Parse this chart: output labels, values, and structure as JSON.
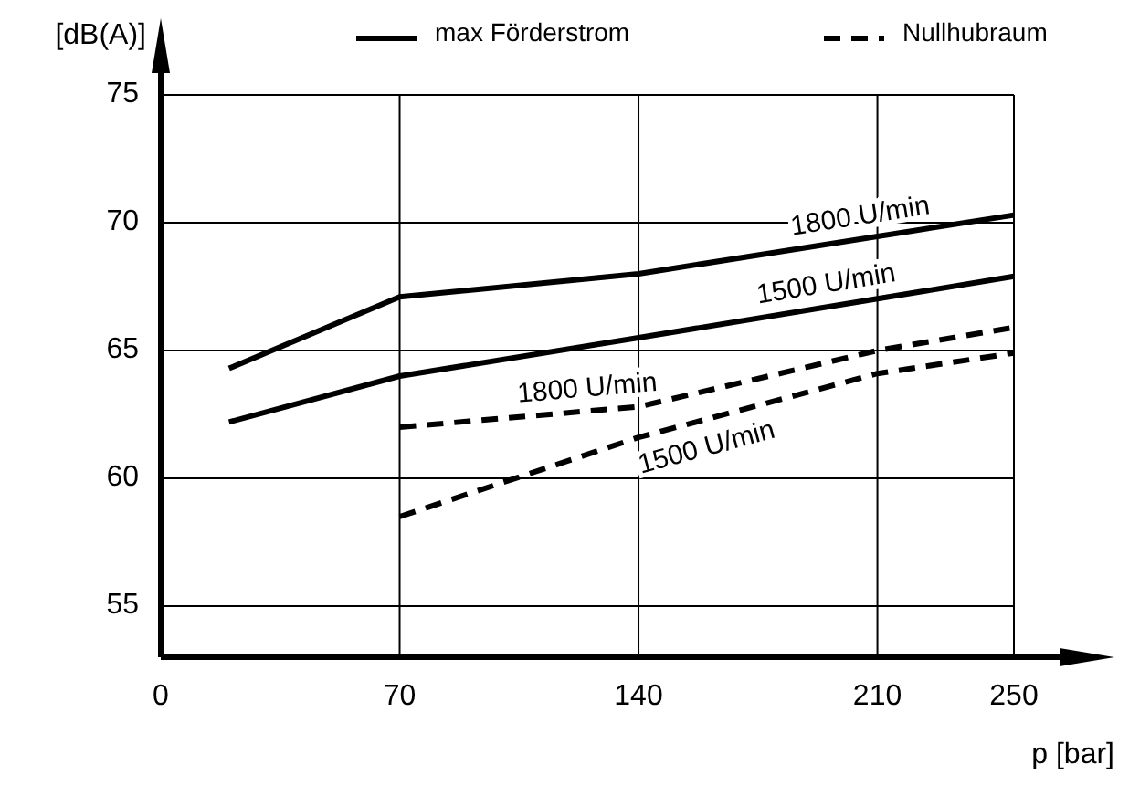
{
  "chart_data": {
    "type": "line",
    "xlabel": "p [bar]",
    "ylabel": "[dB(A)]",
    "xlim": [
      0,
      250
    ],
    "ylim": [
      53,
      75
    ],
    "xticks": [
      0,
      70,
      140,
      210,
      250
    ],
    "yticks": [
      55,
      60,
      65,
      70,
      75
    ],
    "grid": true,
    "marker": "none",
    "annotations": [
      "max Förderstrom",
      "Nullhubraum"
    ],
    "series": [
      {
        "name": "1800 U/min",
        "color": "#000000",
        "line_style": "solid",
        "x": [
          20,
          70,
          140,
          250
        ],
        "values": [
          64.3,
          67.1,
          68.0,
          70.3
        ]
      },
      {
        "name": "1500 U/min",
        "color": "#000000",
        "line_style": "solid",
        "x": [
          20,
          70,
          140,
          250
        ],
        "values": [
          62.2,
          64.0,
          65.5,
          67.9
        ]
      },
      {
        "name": "1800 U/min",
        "color": "#000000",
        "line_style": "dashed",
        "x": [
          70,
          140,
          210,
          250
        ],
        "values": [
          62.0,
          62.8,
          65.0,
          65.9
        ]
      },
      {
        "name": "1500 U/min",
        "color": "#000000",
        "line_style": "dashed",
        "x": [
          70,
          140,
          210,
          250
        ],
        "values": [
          58.5,
          61.6,
          64.1,
          64.9
        ]
      }
    ]
  }
}
